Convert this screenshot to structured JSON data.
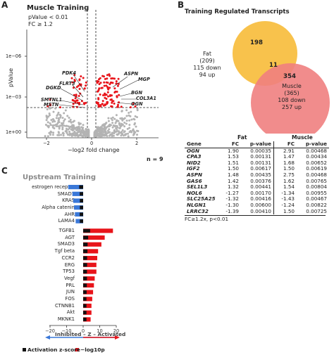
{
  "panelA": {
    "letter": "A",
    "title": "Muscle Training",
    "note1": "pValue < 0.01",
    "note2": "FC ≥ 1.2",
    "ylabel": "pValue",
    "xlabel": "−log2 fold change",
    "n_label": "n = 9",
    "yticks": [
      "1e−06",
      "1e−03",
      "1e+00"
    ],
    "xticks": [
      "−2",
      "0",
      "2"
    ],
    "genes": [
      "PDK4",
      "FLRT3",
      "DGKD",
      "SMTNL1",
      "MSTN",
      "ASPN",
      "MGP",
      "BGN",
      "COL3A1",
      "OGN"
    ],
    "colors": {
      "significant": "#e8141a",
      "nonsignificant": "#b3b3b3"
    }
  },
  "panelB": {
    "letter": "B",
    "title": "Training Regulated Transcripts",
    "fat": {
      "label": "Fat",
      "total": "(209)",
      "down": "115 down",
      "up": "94 up",
      "unique": "198",
      "color": "#f8c24c"
    },
    "overlap": "11",
    "muscle": {
      "label": "Muscle",
      "total": "(365)",
      "down": "108 down",
      "up": "257 up",
      "unique": "354",
      "color": "#f07f7f"
    }
  },
  "table": {
    "group_fat": "Fat",
    "group_muscle": "Muscle",
    "headers": [
      "Gene",
      "FC",
      "p-value",
      "FC",
      "p-value"
    ],
    "rows": [
      [
        "OGN",
        "1.90",
        "0.00035",
        "2.91",
        "0.00468"
      ],
      [
        "CPA3",
        "1.53",
        "0.00131",
        "1.47",
        "0.00434"
      ],
      [
        "NID2",
        "1.51",
        "0.00131",
        "1.68",
        "0.00652"
      ],
      [
        "IGF2",
        "1.50",
        "0.00617",
        "1.50",
        "0.00619"
      ],
      [
        "ASPN",
        "1.48",
        "0.00435",
        "2.75",
        "0.00468"
      ],
      [
        "GAS6",
        "1.42",
        "0.00376",
        "1.62",
        "0.00765"
      ],
      [
        "SEL1L3",
        "1.32",
        "0.00441",
        "1.54",
        "0.00804"
      ],
      [
        "NOL6",
        "-1.27",
        "0.00170",
        "-1.34",
        "0.00955"
      ],
      [
        "SLC25A25",
        "-1.32",
        "0.00416",
        "-1.43",
        "0.00467"
      ],
      [
        "NLGN1",
        "-1.30",
        "0.00600",
        "-1.24",
        "0.00822"
      ],
      [
        "LRRC32",
        "-1.39",
        "0.00410",
        "1.50",
        "0.00725"
      ]
    ],
    "footnote": "FC≥1.2x, p<0.01"
  },
  "panelC": {
    "letter": "C",
    "title": "Upstream Training",
    "axis_label": "Inhibited – Z – Activated",
    "legend": [
      "Activation z-score",
      "−log10p"
    ],
    "colors": {
      "inhibited": "#3a78d8",
      "activated": "#e8141a",
      "zscore": "#111111"
    }
  },
  "chart_data": {
    "type": "bar",
    "categories": [
      "estrogen receptor",
      "SMAD7",
      "KRAS",
      "Alpha catenin",
      "AHR",
      "LAMA4",
      "TGFB1",
      "AGT",
      "SMAD3",
      "Tgf beta",
      "CCR2",
      "ERG",
      "TP53",
      "Vegf",
      "PRL",
      "JUN",
      "FOS",
      "CTNNB1",
      "Akt",
      "MKNK1"
    ],
    "series": [
      {
        "name": "Activation z-score",
        "values": [
          -2.4,
          -2.1,
          -2.0,
          -2.0,
          -2.1,
          -2.0,
          4.2,
          3.0,
          2.7,
          2.6,
          2.4,
          2.4,
          2.3,
          2.3,
          2.2,
          2.1,
          2.0,
          2.0,
          2.0,
          2.0
        ]
      },
      {
        "name": "−log10p",
        "values": [
          -9.0,
          -6.5,
          -6.0,
          -5.5,
          -5.0,
          -4.5,
          18.0,
          13.0,
          11.0,
          9.0,
          8.5,
          8.0,
          8.0,
          7.0,
          6.5,
          6.0,
          5.5,
          5.0,
          5.0,
          4.5
        ]
      }
    ],
    "xlim": [
      -20,
      20
    ],
    "xticks": [
      "−20",
      "−10",
      "0",
      "10",
      "20"
    ],
    "xlabel": "Inhibited – Z – Activated"
  }
}
